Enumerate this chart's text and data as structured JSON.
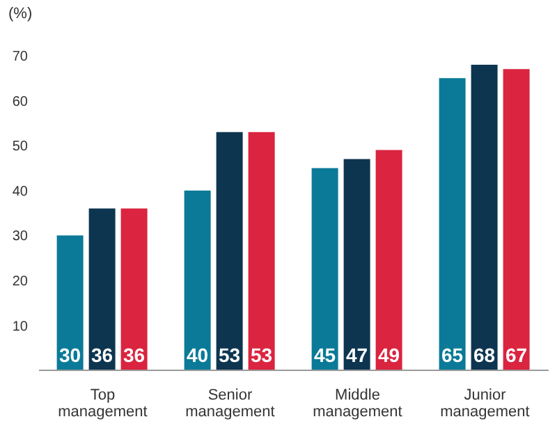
{
  "chart_data": {
    "type": "bar",
    "ylabel": "(%)",
    "categories": [
      "Top management",
      "Senior management",
      "Middle management",
      "Junior management"
    ],
    "series": [
      {
        "color": "#0b7a98",
        "values": [
          30,
          40,
          45,
          65
        ]
      },
      {
        "color": "#0d3550",
        "values": [
          36,
          53,
          47,
          68
        ]
      },
      {
        "color": "#da2440",
        "values": [
          36,
          53,
          49,
          67
        ]
      }
    ],
    "ylim": [
      0,
      70
    ],
    "yticks": [
      10,
      20,
      30,
      40,
      50,
      60,
      70
    ],
    "grid": false,
    "legend": false,
    "data_labels": true
  }
}
